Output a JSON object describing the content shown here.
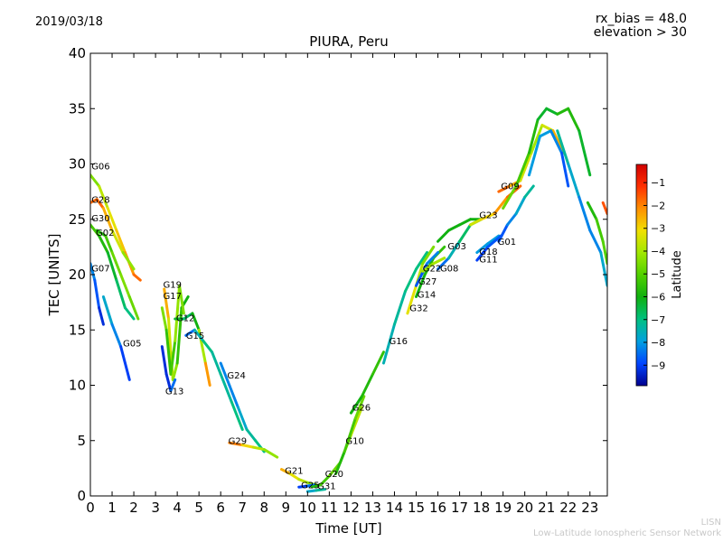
{
  "header": {
    "date": "2019/03/18",
    "rx_bias": "rx_bias = 48.0",
    "elevation": "elevation > 30"
  },
  "footer": {
    "org_short": "LISN",
    "org_long": "Low-Latitude Ionospheric Sensor Network"
  },
  "colors": {
    "scale": [
      "#00008f",
      "#0044ff",
      "#00a0e0",
      "#00c080",
      "#10b010",
      "#50d000",
      "#a0e800",
      "#f0e000",
      "#ff9000",
      "#ff3000",
      "#d00000"
    ]
  },
  "chart_data": {
    "type": "scatter",
    "title": "PIURA, Peru",
    "xlabel": "Time [UT]",
    "ylabel": "TEC [UNITS]",
    "xlim": [
      0,
      23.8
    ],
    "ylim": [
      0,
      40
    ],
    "xticks": [
      0,
      1,
      2,
      3,
      4,
      5,
      6,
      7,
      8,
      9,
      10,
      11,
      12,
      13,
      14,
      15,
      16,
      17,
      18,
      19,
      20,
      21,
      22,
      23
    ],
    "yticks": [
      0,
      5,
      10,
      15,
      20,
      25,
      30,
      35,
      40
    ],
    "colorbar": {
      "label": "Latitude",
      "range": [
        -9.9,
        -0.2
      ],
      "ticks": [
        -1,
        -2,
        -3,
        -4,
        -5,
        -6,
        -7,
        -8,
        -9
      ]
    },
    "grid": false,
    "series": [
      {
        "name": "G06",
        "label_pos": [
          0.05,
          29.5
        ],
        "points": [
          [
            0,
            29
          ],
          [
            0.4,
            28
          ],
          [
            0.8,
            26
          ],
          [
            1.2,
            24
          ],
          [
            1.6,
            22
          ],
          [
            2.0,
            20
          ],
          [
            2.3,
            19.5
          ]
        ],
        "lat": [
          -5,
          -4,
          -3.5,
          -3,
          -2.5,
          -2,
          -1.5
        ]
      },
      {
        "name": "G28",
        "label_pos": [
          0.05,
          26.5
        ],
        "points": [
          [
            0,
            26.5
          ],
          [
            0.3,
            26.8
          ],
          [
            0.6,
            26
          ],
          [
            1.0,
            24
          ],
          [
            1.5,
            22
          ],
          [
            2.0,
            20.5
          ]
        ],
        "lat": [
          -2,
          -1.5,
          -2,
          -3,
          -4,
          -4.5
        ]
      },
      {
        "name": "G30",
        "label_pos": [
          0.05,
          24.8
        ],
        "points": [
          [
            0,
            24.5
          ],
          [
            0.4,
            23.5
          ],
          [
            0.8,
            22
          ],
          [
            1.2,
            19.5
          ],
          [
            1.6,
            17
          ],
          [
            2.0,
            16
          ]
        ],
        "lat": [
          -5,
          -5.5,
          -6,
          -6.5,
          -7,
          -7
        ]
      },
      {
        "name": "G02",
        "label_pos": [
          0.25,
          23.5
        ],
        "points": [
          [
            0.3,
            24
          ],
          [
            0.7,
            23.5
          ],
          [
            1.0,
            22
          ],
          [
            1.4,
            20
          ],
          [
            1.8,
            18
          ],
          [
            2.2,
            16
          ]
        ],
        "lat": [
          -6,
          -5.5,
          -5,
          -4.5,
          -4.5,
          -5
        ]
      },
      {
        "name": "G07",
        "label_pos": [
          0.05,
          20.3
        ],
        "points": [
          [
            0,
            21
          ],
          [
            0.2,
            19.5
          ],
          [
            0.4,
            17
          ],
          [
            0.6,
            15.5
          ]
        ],
        "lat": [
          -8,
          -8.5,
          -9,
          -9.5
        ]
      },
      {
        "name": "G05",
        "label_pos": [
          1.5,
          13.5
        ],
        "points": [
          [
            0.6,
            18
          ],
          [
            1.0,
            15.5
          ],
          [
            1.4,
            13.5
          ],
          [
            1.8,
            10.5
          ]
        ],
        "lat": [
          -7.5,
          -8,
          -8.5,
          -9.5
        ]
      },
      {
        "name": "G19",
        "label_pos": [
          3.35,
          18.8
        ],
        "points": [
          [
            3.4,
            18.7
          ],
          [
            3.6,
            16
          ],
          [
            3.7,
            13
          ],
          [
            3.8,
            10.5
          ],
          [
            4.0,
            12
          ],
          [
            4.2,
            17
          ],
          [
            4.5,
            18
          ]
        ],
        "lat": [
          -2,
          -3,
          -4,
          -3.5,
          -5,
          -6,
          -6
        ]
      },
      {
        "name": "G17",
        "label_pos": [
          3.35,
          17.8
        ],
        "points": [
          [
            3.3,
            17
          ],
          [
            3.5,
            15
          ],
          [
            3.7,
            11
          ],
          [
            3.9,
            14
          ],
          [
            4.1,
            19
          ],
          [
            4.3,
            16.5
          ]
        ],
        "lat": [
          -4,
          -5,
          -6,
          -4.5,
          -4,
          -5
        ]
      },
      {
        "name": "G12",
        "label_pos": [
          3.95,
          15.8
        ],
        "points": [
          [
            3.9,
            16
          ],
          [
            4.3,
            16
          ],
          [
            4.7,
            16.5
          ],
          [
            5.0,
            15
          ],
          [
            5.3,
            12
          ],
          [
            5.5,
            10
          ]
        ],
        "lat": [
          -6,
          -6.5,
          -7,
          -5,
          -3,
          -1.5
        ]
      },
      {
        "name": "G15",
        "label_pos": [
          4.4,
          14.2
        ],
        "points": [
          [
            4.4,
            14.5
          ],
          [
            4.8,
            15
          ],
          [
            5.2,
            14
          ],
          [
            5.6,
            13
          ],
          [
            6.0,
            11
          ],
          [
            6.5,
            8.5
          ],
          [
            7.0,
            6
          ]
        ],
        "lat": [
          -9,
          -8,
          -7,
          -7,
          -7.5,
          -7,
          -7
        ]
      },
      {
        "name": "G13",
        "label_pos": [
          3.45,
          9.2
        ],
        "points": [
          [
            3.3,
            13.5
          ],
          [
            3.5,
            11
          ],
          [
            3.7,
            9.5
          ],
          [
            3.9,
            10.5
          ]
        ],
        "lat": [
          -9,
          -9.5,
          -9,
          -8
        ]
      },
      {
        "name": "G24",
        "label_pos": [
          6.3,
          10.6
        ],
        "points": [
          [
            6.0,
            12
          ],
          [
            6.4,
            10
          ],
          [
            6.8,
            8
          ],
          [
            7.2,
            6
          ],
          [
            7.6,
            5
          ],
          [
            8.0,
            4
          ]
        ],
        "lat": [
          -8,
          -8.5,
          -8,
          -7.5,
          -7,
          -7
        ]
      },
      {
        "name": "G29",
        "label_pos": [
          6.35,
          4.7
        ],
        "points": [
          [
            6.4,
            4.8
          ],
          [
            7.0,
            4.6
          ],
          [
            7.5,
            4.4
          ],
          [
            8.0,
            4.2
          ],
          [
            8.6,
            3.5
          ]
        ],
        "lat": [
          -1.5,
          -2.5,
          -3.5,
          -4,
          -4.5
        ]
      },
      {
        "name": "G21",
        "label_pos": [
          8.95,
          2.0
        ],
        "points": [
          [
            8.8,
            2.4
          ],
          [
            9.2,
            2.0
          ],
          [
            9.6,
            1.5
          ],
          [
            10.0,
            1.2
          ],
          [
            10.4,
            1.0
          ]
        ],
        "lat": [
          -2,
          -3,
          -3.5,
          -4,
          -4.5
        ]
      },
      {
        "name": "G25",
        "label_pos": [
          9.7,
          0.7
        ],
        "points": [
          [
            9.6,
            0.8
          ],
          [
            10.0,
            0.9
          ],
          [
            10.3,
            1.0
          ]
        ],
        "lat": [
          -9,
          -9,
          -8
        ]
      },
      {
        "name": "G20",
        "label_pos": [
          10.8,
          1.7
        ],
        "points": [
          [
            10.2,
            0.8
          ],
          [
            10.6,
            1.0
          ],
          [
            11.0,
            1.8
          ],
          [
            11.5,
            3
          ],
          [
            12.0,
            5.5
          ],
          [
            12.5,
            8
          ]
        ],
        "lat": [
          -6,
          -5.5,
          -5,
          -4.5,
          -4,
          -3.5
        ]
      },
      {
        "name": "G31",
        "label_pos": [
          10.45,
          0.6
        ],
        "points": [
          [
            10.0,
            0.4
          ],
          [
            10.4,
            0.5
          ],
          [
            10.8,
            0.6
          ]
        ],
        "lat": [
          -8,
          -7.5,
          -7
        ]
      },
      {
        "name": "G10",
        "label_pos": [
          11.75,
          4.7
        ],
        "points": [
          [
            11.3,
            2
          ],
          [
            11.7,
            4
          ],
          [
            12.2,
            7
          ],
          [
            12.6,
            9
          ]
        ],
        "lat": [
          -6,
          -5.5,
          -5,
          -4.5
        ]
      },
      {
        "name": "G26",
        "label_pos": [
          12.05,
          7.7
        ],
        "points": [
          [
            12.0,
            7.5
          ],
          [
            12.5,
            9
          ],
          [
            13.0,
            11
          ],
          [
            13.5,
            13
          ]
        ],
        "lat": [
          -6,
          -6,
          -5.5,
          -5.5
        ]
      },
      {
        "name": "G16",
        "label_pos": [
          13.75,
          13.7
        ],
        "points": [
          [
            13.5,
            12
          ],
          [
            14.0,
            15.5
          ],
          [
            14.5,
            18.5
          ],
          [
            15.0,
            20.5
          ],
          [
            15.5,
            22
          ]
        ],
        "lat": [
          -7.5,
          -7.5,
          -7,
          -7,
          -7
        ]
      },
      {
        "name": "G32",
        "label_pos": [
          14.7,
          16.7
        ],
        "points": [
          [
            14.6,
            16.5
          ],
          [
            15.0,
            19
          ],
          [
            15.3,
            21
          ],
          [
            15.8,
            22.5
          ]
        ],
        "lat": [
          -3,
          -3.5,
          -4,
          -5
        ]
      },
      {
        "name": "G14",
        "label_pos": [
          15.05,
          17.9
        ],
        "points": [
          [
            15.0,
            18
          ],
          [
            15.4,
            20
          ],
          [
            15.8,
            21.5
          ],
          [
            16.3,
            22.5
          ]
        ],
        "lat": [
          -6,
          -6,
          -5.5,
          -5.5
        ]
      },
      {
        "name": "G27",
        "label_pos": [
          15.1,
          19.1
        ],
        "points": [
          [
            15.0,
            19
          ],
          [
            15.5,
            21
          ],
          [
            16.0,
            22
          ]
        ],
        "lat": [
          -9,
          -8.5,
          -8
        ]
      },
      {
        "name": "G22",
        "label_pos": [
          15.3,
          20.3
        ],
        "points": [
          [
            15.3,
            20.3
          ],
          [
            15.8,
            21
          ],
          [
            16.3,
            21.5
          ]
        ],
        "lat": [
          -4,
          -4,
          -4
        ]
      },
      {
        "name": "G08",
        "label_pos": [
          16.1,
          20.3
        ],
        "points": [
          [
            16.0,
            20.5
          ],
          [
            16.5,
            21.5
          ],
          [
            17.0,
            23
          ],
          [
            17.5,
            24.5
          ],
          [
            18.0,
            25
          ]
        ],
        "lat": [
          -9,
          -8,
          -7,
          -6.5,
          -6
        ]
      },
      {
        "name": "G03",
        "label_pos": [
          16.45,
          22.3
        ],
        "points": [
          [
            16.0,
            23
          ],
          [
            16.5,
            24
          ],
          [
            17.0,
            24.5
          ],
          [
            17.5,
            25
          ],
          [
            18.0,
            25
          ]
        ],
        "lat": [
          -6,
          -6,
          -6,
          -6,
          -6
        ]
      },
      {
        "name": "G18",
        "label_pos": [
          17.9,
          21.8
        ],
        "points": [
          [
            17.8,
            22
          ],
          [
            18.3,
            22.8
          ],
          [
            18.8,
            23.5
          ]
        ],
        "lat": [
          -8,
          -8,
          -8
        ]
      },
      {
        "name": "G11",
        "label_pos": [
          17.9,
          21.1
        ],
        "points": [
          [
            17.8,
            21.3
          ],
          [
            18.3,
            22.5
          ],
          [
            18.9,
            23.5
          ]
        ],
        "lat": [
          -9,
          -9,
          -8.5
        ]
      },
      {
        "name": "G01",
        "label_pos": [
          18.75,
          22.7
        ],
        "points": [
          [
            18.8,
            23
          ],
          [
            19.2,
            24.5
          ],
          [
            19.6,
            25.5
          ],
          [
            20.0,
            27
          ],
          [
            20.4,
            28
          ]
        ],
        "lat": [
          -9,
          -8.5,
          -8,
          -7.5,
          -7
        ]
      },
      {
        "name": "G23",
        "label_pos": [
          17.9,
          25.1
        ],
        "points": [
          [
            17.5,
            24.5
          ],
          [
            18.0,
            25
          ],
          [
            18.6,
            25.5
          ],
          [
            19.2,
            27
          ],
          [
            19.8,
            28
          ]
        ],
        "lat": [
          -3.5,
          -3.5,
          -2.5,
          -2,
          -1.5
        ]
      },
      {
        "name": "G09",
        "label_pos": [
          18.9,
          27.7
        ],
        "points": [
          [
            18.8,
            27.5
          ],
          [
            19.3,
            28
          ],
          [
            19.8,
            28.5
          ],
          [
            20.3,
            31
          ],
          [
            20.8,
            33.5
          ],
          [
            21.3,
            33
          ],
          [
            21.8,
            31
          ]
        ],
        "lat": [
          -1.5,
          -2,
          -3,
          -4,
          -4,
          -3,
          -2
        ]
      },
      {
        "name": "",
        "label_pos": [
          0,
          0
        ],
        "points": [
          [
            19.0,
            26
          ],
          [
            19.6,
            28
          ],
          [
            20.2,
            31
          ],
          [
            20.6,
            34
          ],
          [
            21.0,
            35
          ],
          [
            21.5,
            34.5
          ],
          [
            22.0,
            35
          ],
          [
            22.5,
            33
          ],
          [
            23.0,
            29
          ]
        ],
        "lat": [
          -4.5,
          -5,
          -5.5,
          -6,
          -6.5,
          -6,
          -5.5,
          -6,
          -6.5
        ]
      },
      {
        "name": "",
        "label_pos": [
          0,
          0
        ],
        "points": [
          [
            20.2,
            29
          ],
          [
            20.7,
            32.5
          ],
          [
            21.2,
            33
          ],
          [
            21.7,
            31
          ],
          [
            22.0,
            28
          ]
        ],
        "lat": [
          -8,
          -8,
          -8,
          -8.5,
          -9
        ]
      },
      {
        "name": "",
        "label_pos": [
          0,
          0
        ],
        "points": [
          [
            21.5,
            33
          ],
          [
            22.0,
            30
          ],
          [
            22.5,
            27
          ],
          [
            23.0,
            24
          ],
          [
            23.5,
            22
          ],
          [
            23.8,
            19
          ]
        ],
        "lat": [
          -7,
          -7.5,
          -8,
          -8.5,
          -8,
          -7.5
        ]
      },
      {
        "name": "",
        "label_pos": [
          0,
          0
        ],
        "points": [
          [
            22.9,
            26.5
          ],
          [
            23.3,
            25
          ],
          [
            23.6,
            23
          ],
          [
            23.8,
            21
          ]
        ],
        "lat": [
          -6,
          -5.5,
          -5,
          -5
        ]
      },
      {
        "name": "",
        "label_pos": [
          0,
          0
        ],
        "points": [
          [
            23.6,
            26.5
          ],
          [
            23.8,
            25.5
          ]
        ],
        "lat": [
          -1.5,
          -1.5
        ]
      }
    ]
  }
}
